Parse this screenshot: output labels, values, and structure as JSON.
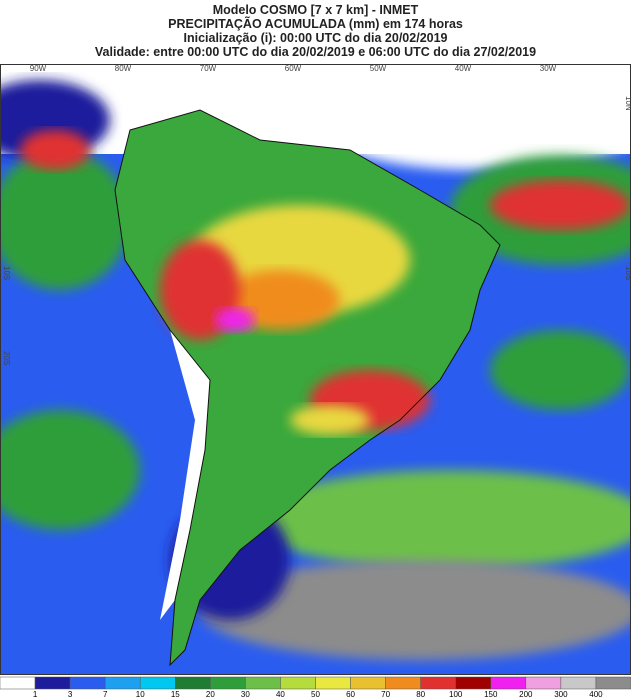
{
  "header": {
    "title": "Modelo COSMO [7 x 7 km] - INMET",
    "subtitle": "PRECIPITAÇÃO ACUMULADA (mm) em 174 horas",
    "initialization": "Inicialização (i): 00:00 UTC do dia 20/02/2019",
    "validity": "Validade: entre 00:00 UTC do dia 20/02/2019 e 06:00 UTC do dia 27/02/2019"
  },
  "map": {
    "lon_labels": [
      "90W",
      "80W",
      "70W",
      "60W",
      "50W",
      "40W",
      "30W"
    ],
    "lat_labels_left": [
      "10S",
      "20S"
    ],
    "lat_labels_right": [
      "10N",
      "10S"
    ]
  },
  "colorbar": {
    "labels": [
      1,
      3,
      7,
      10,
      15,
      20,
      30,
      40,
      50,
      60,
      70,
      80,
      100,
      150,
      200,
      300,
      400
    ],
    "colors": [
      "#ffffff",
      "#1c1c9c",
      "#2a5cf0",
      "#1ea0f0",
      "#00c8f0",
      "#1e7d32",
      "#2e9e3a",
      "#6cc04a",
      "#b4dc3c",
      "#e8e840",
      "#e8c030",
      "#f08c1e",
      "#e03030",
      "#a00000",
      "#f020f0",
      "#f0a0e0",
      "#c8c8c8",
      "#8c8c8c"
    ]
  }
}
